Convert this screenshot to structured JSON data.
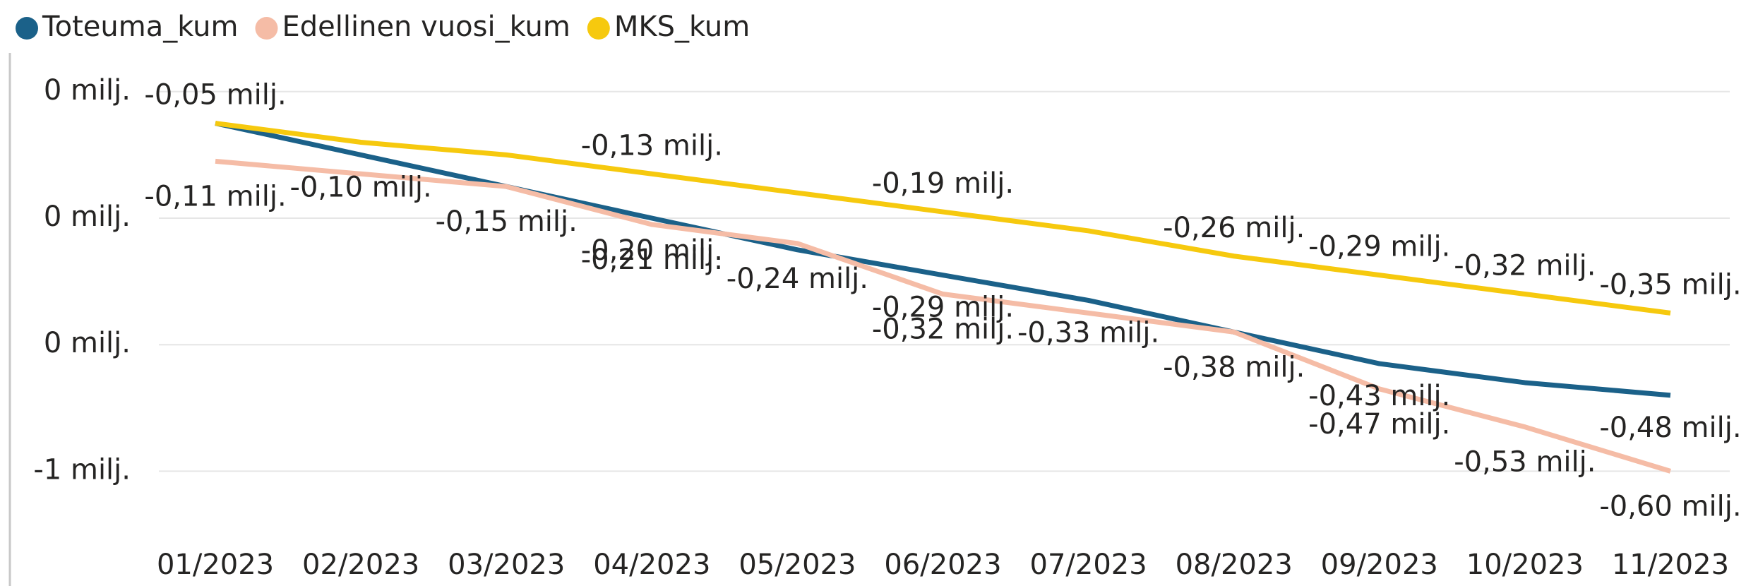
{
  "chart_data": {
    "type": "line",
    "categories": [
      "01/2023",
      "02/2023",
      "03/2023",
      "04/2023",
      "05/2023",
      "06/2023",
      "07/2023",
      "08/2023",
      "09/2023",
      "10/2023",
      "11/2023"
    ],
    "series": [
      {
        "name": "Toteuma_kum",
        "color": "#1b6189",
        "values": [
          -0.05,
          -0.1,
          -0.15,
          -0.2,
          -0.25,
          -0.29,
          -0.33,
          -0.38,
          -0.43,
          -0.46,
          -0.48
        ],
        "value_labels": [
          null,
          "-0,10 milj.",
          null,
          "-0,20 milj.",
          null,
          "-0,29 milj.",
          "-0,33 milj.",
          null,
          "-0,43 milj.",
          null,
          "-0,48 milj."
        ]
      },
      {
        "name": "Edellinen vuosi_kum",
        "color": "#f5bca6",
        "values": [
          -0.11,
          -0.13,
          -0.15,
          -0.21,
          -0.24,
          -0.32,
          -0.35,
          -0.38,
          -0.47,
          -0.53,
          -0.6
        ],
        "value_labels": [
          "-0,11 milj.",
          null,
          "-0,15 milj.",
          "-0,21 milj.",
          "-0,24 milj.",
          "-0,32 milj.",
          null,
          "-0,38 milj.",
          "-0,47 milj.",
          "-0,53 milj.",
          "-0,60 milj."
        ]
      },
      {
        "name": "MKS_kum",
        "color": "#f6c90e",
        "values": [
          -0.05,
          -0.08,
          -0.1,
          -0.13,
          -0.16,
          -0.19,
          -0.22,
          -0.26,
          -0.29,
          -0.32,
          -0.35
        ],
        "value_labels": [
          "-0,05 milj.",
          null,
          null,
          "-0,13 milj.",
          null,
          "-0,19 milj.",
          null,
          "-0,26 milj.",
          "-0,29 milj.",
          "-0,32 milj.",
          "-0,35 milj."
        ]
      }
    ],
    "ylim": [
      -0.7,
      0.05
    ],
    "yticks": [
      {
        "value": 0,
        "label": "0 milj."
      },
      {
        "value": -0.2,
        "label": "0 milj."
      },
      {
        "value": -0.4,
        "label": "0 milj."
      },
      {
        "value": -0.6,
        "label": "-1 milj."
      }
    ],
    "grid": true,
    "legend": "top-left"
  }
}
